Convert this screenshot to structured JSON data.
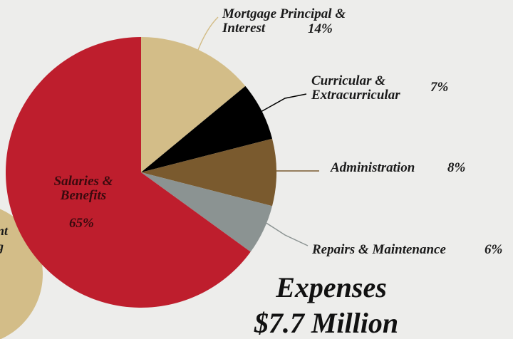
{
  "chart_data": {
    "type": "pie",
    "title": "Expenses",
    "subtitle": "$7.7 Million",
    "categories": [
      "Mortgage Principal & Interest",
      "Curricular & Extracurricular",
      "Administration",
      "Repairs & Maintenance",
      "Salaries & Benefits"
    ],
    "values": [
      14,
      7,
      8,
      6,
      65
    ],
    "value_labels": [
      "14%",
      "7%",
      "8%",
      "6%",
      "65%"
    ],
    "colors": [
      "#d3bd88",
      "#000000",
      "#7a5a2e",
      "#8b9392",
      "#be1e2d"
    ],
    "cropped_texts": [
      "nt",
      "g"
    ]
  }
}
